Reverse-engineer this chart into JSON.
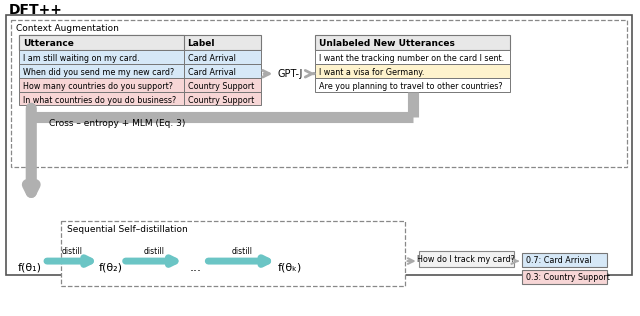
{
  "title": "DFT++",
  "context_aug_label": "Context Augmentation",
  "table_headers": [
    "Utterance",
    "Label"
  ],
  "table_rows": [
    [
      "I am still waiting on my card.",
      "Card Arrival",
      "blue"
    ],
    [
      "When did you send me my new card?",
      "Card Arrival",
      "blue"
    ],
    [
      "How many countries do you support?",
      "Country Support",
      "pink"
    ],
    [
      "In what countries do you do business?",
      "Country Support",
      "pink"
    ]
  ],
  "gptj_label": "GPT-J",
  "unlabeled_box_header": "Unlabeled New Utterances",
  "unlabeled_rows": [
    [
      "I want the tracking number on the card I sent.",
      "white"
    ],
    [
      "I want a visa for Germany.",
      "yellow"
    ],
    [
      "Are you planning to travel to other countries?",
      "white"
    ]
  ],
  "cross_entropy_label": "Cross – entropy + MLM (Eq. 3)",
  "seq_distill_label": "Sequential Self–distillation",
  "distill_nodes": [
    "f(θ₁)",
    "f(θ₂)",
    "...",
    "f(θₖ)"
  ],
  "distill_labels": [
    "distill",
    "distill",
    "distill"
  ],
  "query_box": "How do I track my card?",
  "output_rows": [
    [
      "0.7: Card Arrival",
      "blue"
    ],
    [
      "0.3: Country Support",
      "pink"
    ]
  ],
  "blue_light": "#d6e8f7",
  "pink_light": "#f7d6d6",
  "yellow_light": "#fef3cd",
  "white": "#ffffff",
  "header_bg": "#e8e8e8",
  "teal_arrow": "#6bc5c5",
  "gray_arrow": "#aaaaaa",
  "thick_arrow": "#b0b0b0"
}
